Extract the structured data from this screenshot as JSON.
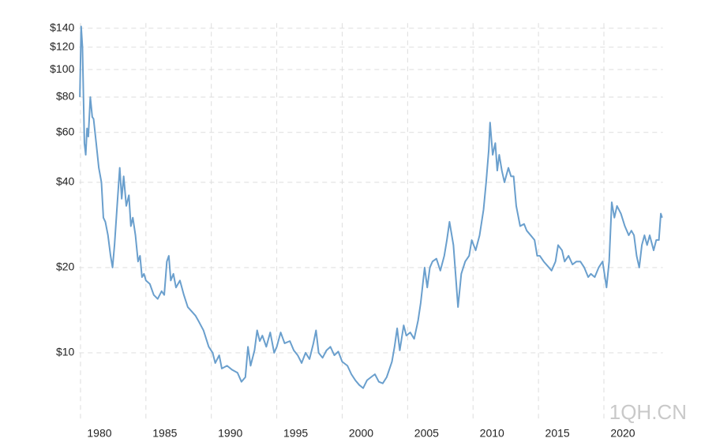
{
  "chart_data": {
    "type": "line",
    "log_scale": true,
    "grid": true,
    "color": "#6a9fcd",
    "watermark": "1QH.CN",
    "xlim": [
      1979.9,
      2024.5
    ],
    "xticks": [
      1980,
      1985,
      1990,
      1995,
      2000,
      2005,
      2010,
      2015,
      2020
    ],
    "ylim": [
      5.85,
      146
    ],
    "yticks": [
      {
        "value": 10,
        "label": "$10"
      },
      {
        "value": 20,
        "label": "$20"
      },
      {
        "value": 40,
        "label": "$40"
      },
      {
        "value": 60,
        "label": "$60"
      },
      {
        "value": 80,
        "label": "$80"
      },
      {
        "value": 100,
        "label": "$100"
      },
      {
        "value": 120,
        "label": "$120"
      },
      {
        "value": 140,
        "label": "$140"
      }
    ],
    "x": [
      1979.95,
      1980.05,
      1980.15,
      1980.3,
      1980.4,
      1980.5,
      1980.6,
      1980.75,
      1980.9,
      1981.0,
      1981.2,
      1981.4,
      1981.6,
      1981.75,
      1981.9,
      1982.1,
      1982.3,
      1982.45,
      1982.6,
      1982.8,
      1983.0,
      1983.15,
      1983.3,
      1983.5,
      1983.7,
      1983.85,
      1984.0,
      1984.2,
      1984.4,
      1984.55,
      1984.7,
      1984.85,
      1985.0,
      1985.3,
      1985.6,
      1985.9,
      1986.2,
      1986.4,
      1986.6,
      1986.75,
      1986.9,
      1987.1,
      1987.3,
      1987.6,
      1987.9,
      1988.2,
      1988.5,
      1988.8,
      1989.0,
      1989.4,
      1989.8,
      1990.1,
      1990.3,
      1990.6,
      1990.8,
      1991.2,
      1991.6,
      1992.0,
      1992.3,
      1992.6,
      1992.8,
      1993.0,
      1993.3,
      1993.5,
      1993.7,
      1993.9,
      1994.2,
      1994.5,
      1994.8,
      1995.0,
      1995.3,
      1995.6,
      1996.0,
      1996.3,
      1996.6,
      1996.9,
      1997.2,
      1997.5,
      1997.8,
      1998.0,
      1998.2,
      1998.5,
      1998.8,
      1999.1,
      1999.4,
      1999.7,
      2000.0,
      2000.4,
      2000.7,
      2001.0,
      2001.3,
      2001.6,
      2001.9,
      2002.2,
      2002.5,
      2002.8,
      2003.1,
      2003.4,
      2003.8,
      2004.0,
      2004.2,
      2004.4,
      2004.7,
      2004.9,
      2005.2,
      2005.5,
      2005.8,
      2006.0,
      2006.3,
      2006.5,
      2006.7,
      2006.9,
      2007.2,
      2007.5,
      2007.8,
      2008.0,
      2008.2,
      2008.5,
      2008.7,
      2008.85,
      2009.1,
      2009.4,
      2009.7,
      2009.9,
      2010.2,
      2010.5,
      2010.8,
      2011.0,
      2011.2,
      2011.3,
      2011.5,
      2011.7,
      2011.85,
      2012.0,
      2012.2,
      2012.4,
      2012.7,
      2012.9,
      2013.1,
      2013.3,
      2013.6,
      2013.9,
      2014.1,
      2014.4,
      2014.7,
      2014.9,
      2015.1,
      2015.4,
      2015.8,
      2016.0,
      2016.3,
      2016.5,
      2016.8,
      2017.0,
      2017.3,
      2017.6,
      2017.9,
      2018.2,
      2018.5,
      2018.8,
      2019.0,
      2019.3,
      2019.6,
      2019.9,
      2020.2,
      2020.4,
      2020.6,
      2020.8,
      2021.0,
      2021.3,
      2021.6,
      2021.9,
      2022.1,
      2022.3,
      2022.5,
      2022.7,
      2022.9,
      2023.1,
      2023.3,
      2023.5,
      2023.8,
      2024.0,
      2024.2,
      2024.35,
      2024.45
    ],
    "values": [
      80,
      142,
      120,
      55,
      50,
      62,
      58,
      80,
      68,
      67,
      55,
      45,
      40,
      30,
      29,
      26,
      22,
      20,
      24,
      33,
      45,
      35,
      42,
      33,
      36,
      28,
      30,
      26,
      21,
      22,
      18.5,
      19,
      18,
      17.5,
      16,
      15.5,
      16.5,
      16,
      21,
      22,
      18,
      19,
      17,
      18,
      16,
      14.5,
      14,
      13.5,
      13,
      12,
      10.5,
      10,
      9.2,
      9.8,
      8.8,
      9,
      8.7,
      8.5,
      7.9,
      8.2,
      10.5,
      9,
      10.2,
      12,
      11,
      11.5,
      10.5,
      11.8,
      10,
      10.5,
      11.8,
      10.8,
      11,
      10.2,
      9.8,
      9.2,
      10,
      9.5,
      10.8,
      12,
      10,
      9.6,
      10.2,
      10.5,
      9.8,
      10.1,
      9.3,
      9,
      8.4,
      8,
      7.7,
      7.5,
      8,
      8.2,
      8.4,
      7.9,
      7.8,
      8.2,
      9.3,
      10.5,
      12.2,
      10.2,
      12.5,
      11.5,
      11.8,
      11.2,
      13,
      15,
      20,
      17,
      20,
      21,
      21.5,
      19.5,
      22,
      25,
      29,
      24,
      18,
      14.5,
      19,
      21,
      22,
      25,
      23,
      26,
      32,
      40,
      52,
      65,
      50,
      55,
      44,
      50,
      44,
      40,
      45,
      42,
      42,
      33,
      28,
      28.5,
      27,
      26,
      25,
      22,
      22,
      21,
      20,
      19.5,
      21,
      24,
      23,
      21,
      22,
      20.5,
      21,
      21,
      20,
      18.5,
      19,
      18.5,
      20,
      21,
      17,
      21,
      34,
      30,
      33,
      31,
      28,
      26,
      27,
      26,
      22,
      20,
      24,
      26,
      24,
      26,
      23,
      25,
      25,
      31,
      30
    ]
  }
}
